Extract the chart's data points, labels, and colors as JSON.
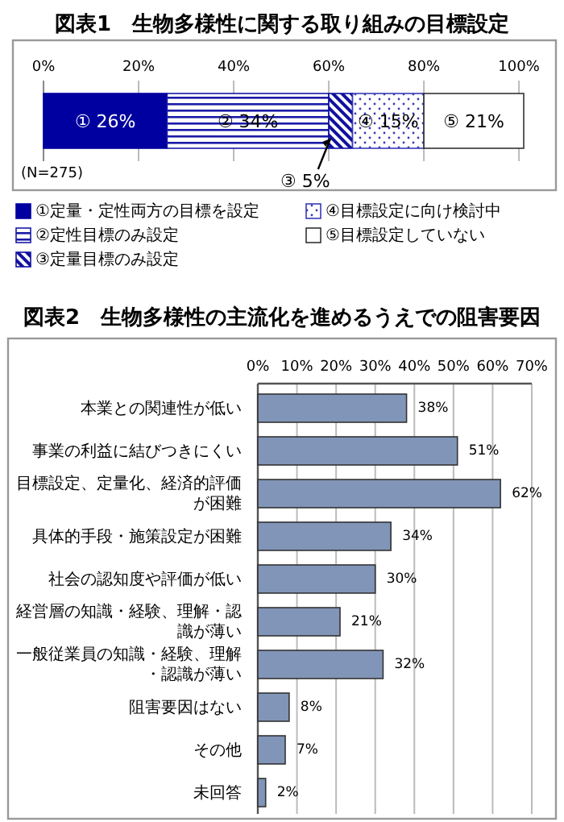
{
  "chart_data": [
    {
      "type": "bar",
      "title": "図表1　生物多様性に関する取り組みの目標設定",
      "orientation": "horizontal",
      "stacked": true,
      "categories": [
        null
      ],
      "series": [
        {
          "name": "①定量・定性両方の目標を設定",
          "color": "#0000a0",
          "values": [
            26
          ],
          "value_labels": [
            "① 26%"
          ]
        },
        {
          "name": "②定性目標のみ設定",
          "color": "#1a1aa8",
          "values": [
            34
          ],
          "value_labels": [
            "② 34%"
          ]
        },
        {
          "name": "③定量目標のみ設定",
          "color": "#1010a0",
          "values": [
            5
          ],
          "value_labels": [
            "③ 5%"
          ]
        },
        {
          "name": "④目標設定に向け検討中",
          "color": "#3a3ab8",
          "values": [
            15
          ],
          "value_labels": [
            "④ 15%"
          ]
        },
        {
          "name": "⑤目標設定していない",
          "color": "#ffffff",
          "values": [
            21
          ],
          "value_labels": [
            "⑤ 21%"
          ]
        }
      ],
      "xlim": [
        0,
        101
      ],
      "xticks": [
        {
          "value": 0,
          "label": "0%"
        },
        {
          "value": 20,
          "label": "20%"
        },
        {
          "value": 40,
          "label": "40%"
        },
        {
          "value": 60,
          "label": "60%"
        },
        {
          "value": 80,
          "label": "80%"
        },
        {
          "value": 100,
          "label": "100%"
        }
      ],
      "grid": "x",
      "legend": "bottom",
      "annotations": [
        "(N=275)"
      ]
    },
    {
      "type": "bar",
      "title": "図表2　生物多様性の主流化を進めるうえでの阻害要因",
      "orientation": "horizontal",
      "categories": [
        "本業との関連性が低い",
        "事業の利益に結びつきにくい",
        "目標設定、定量化、経済的評価が困難",
        "具体的手段・施策設定が困難",
        "社会の認知度や評価が低い",
        "経営層の知識・経験、理解・認識が薄い",
        "一般従業員の知識・経験、理解・認識が薄い",
        "阻害要因はない",
        "その他",
        "未回答"
      ],
      "values": [
        38,
        51,
        62,
        34,
        30,
        21,
        32,
        8,
        7,
        2
      ],
      "value_labels": [
        "38%",
        "51%",
        "62%",
        "34%",
        "30%",
        "21%",
        "32%",
        "8%",
        "7%",
        "2%"
      ],
      "color": "#8195b8",
      "xlim": [
        0,
        70
      ],
      "xticks": [
        {
          "value": 0,
          "label": "0%"
        },
        {
          "value": 10,
          "label": "10%"
        },
        {
          "value": 20,
          "label": "20%"
        },
        {
          "value": 30,
          "label": "30%"
        },
        {
          "value": 40,
          "label": "40%"
        },
        {
          "value": 50,
          "label": "50%"
        },
        {
          "value": 60,
          "label": "60%"
        },
        {
          "value": 70,
          "label": "70%"
        }
      ],
      "grid": "x"
    }
  ]
}
